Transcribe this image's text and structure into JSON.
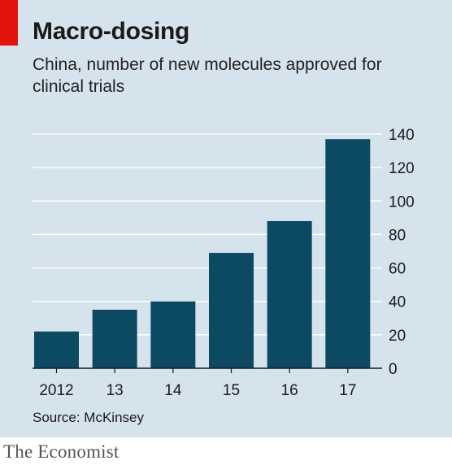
{
  "header": {
    "title": "Macro-dosing",
    "subtitle": "China, number of new molecules approved for clinical trials"
  },
  "footer": {
    "source": "Source: McKinsey",
    "brand": "The Economist"
  },
  "colors": {
    "background": "#d5e3ec",
    "bar": "#0c4a64",
    "accent": "#e3120b",
    "gridline": "#ffffff"
  },
  "chart_data": {
    "type": "bar",
    "title": "Macro-dosing",
    "subtitle": "China, number of new molecules approved for clinical trials",
    "categories": [
      "2012",
      "13",
      "14",
      "15",
      "16",
      "17"
    ],
    "values": [
      22,
      35,
      40,
      69,
      88,
      137
    ],
    "ylim": [
      0,
      140
    ],
    "yticks": [
      0,
      20,
      40,
      60,
      80,
      100,
      120,
      140
    ],
    "y_axis_side": "right",
    "grid": true,
    "xlabel": "",
    "ylabel": ""
  }
}
